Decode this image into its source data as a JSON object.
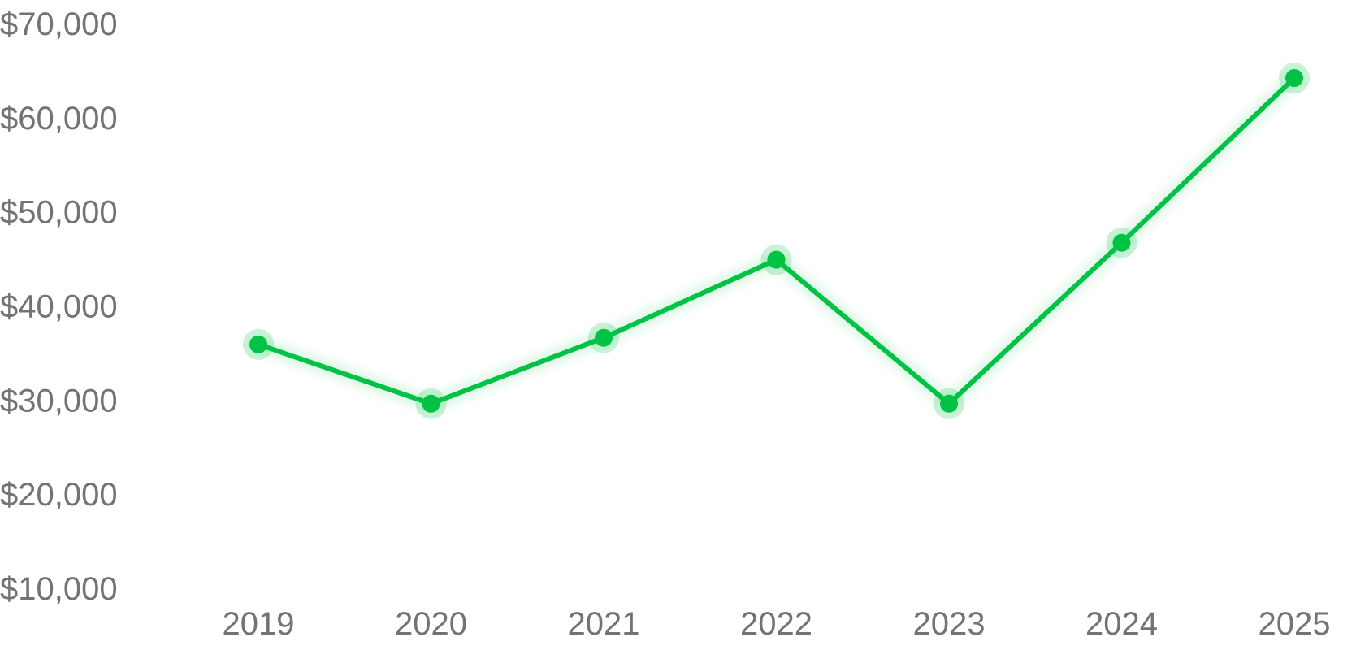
{
  "chart_data": {
    "type": "line",
    "title": "",
    "xlabel": "",
    "ylabel": "",
    "categories": [
      "2019",
      "2020",
      "2021",
      "2022",
      "2023",
      "2024",
      "2025"
    ],
    "series": [
      {
        "values": [
          36000,
          29700,
          36700,
          45000,
          29700,
          46800,
          64300
        ],
        "color": "#00c244"
      }
    ],
    "y_ticks": [
      10000,
      20000,
      30000,
      40000,
      50000,
      60000,
      70000
    ],
    "y_tick_labels": [
      "$10,000",
      "$20,000",
      "$30,000",
      "$40,000",
      "$50,000",
      "$60,000",
      "$70,000"
    ],
    "ylim": [
      10000,
      70000
    ],
    "grid": false,
    "legend": "none"
  }
}
